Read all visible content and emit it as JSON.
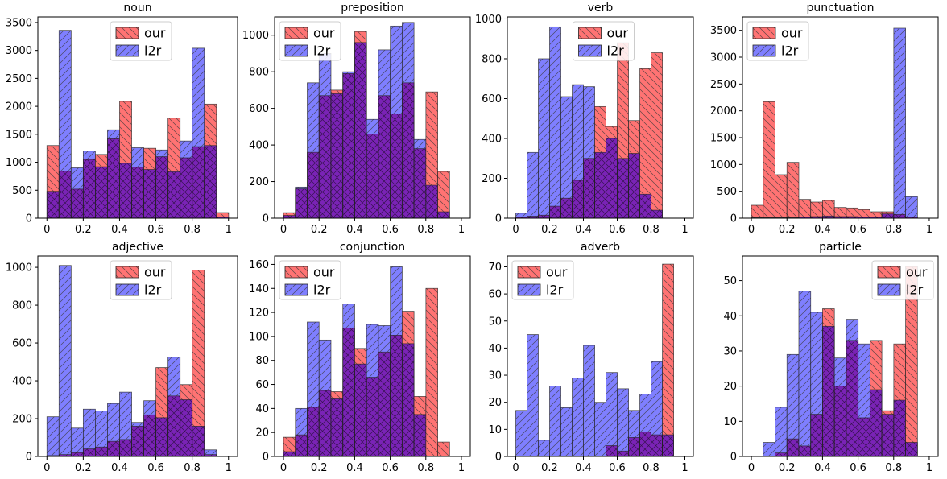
{
  "legend": {
    "our_label": "our",
    "l2r_label": "l2r"
  },
  "colors": {
    "our": "#ff0000",
    "l2r": "#0000ff",
    "overlap": "#7f00bf",
    "edge": "#222222"
  },
  "chart_data": [
    {
      "type": "bar",
      "title": "noun",
      "bin_edges_start": 0.0,
      "bin_width": 0.0667,
      "xlim": [
        -0.05,
        1.05
      ],
      "xticks": [
        0.0,
        0.2,
        0.4,
        0.6,
        0.8,
        1.0
      ],
      "ylim": [
        0,
        3600
      ],
      "yticks": [
        0,
        500,
        1000,
        1500,
        2000,
        2500,
        3000,
        3500
      ],
      "legend_position": "upper-center",
      "grid": false,
      "series": [
        {
          "name": "our",
          "values": [
            1300,
            840,
            520,
            1050,
            1140,
            1420,
            2090,
            910,
            1250,
            1100,
            1790,
            1080,
            1280,
            2040,
            100
          ]
        },
        {
          "name": "l2r",
          "values": [
            480,
            3360,
            900,
            1200,
            920,
            1580,
            980,
            1260,
            870,
            1220,
            830,
            1380,
            3040,
            1300,
            20
          ]
        }
      ]
    },
    {
      "type": "bar",
      "title": "preposition",
      "bin_edges_start": 0.0,
      "bin_width": 0.0667,
      "xlim": [
        -0.05,
        1.05
      ],
      "xticks": [
        0.0,
        0.2,
        0.4,
        0.6,
        0.8,
        1.0
      ],
      "ylim": [
        0,
        1100
      ],
      "yticks": [
        0,
        200,
        400,
        600,
        800,
        1000
      ],
      "legend_position": "upper-left",
      "grid": false,
      "series": [
        {
          "name": "our",
          "values": [
            30,
            160,
            360,
            670,
            700,
            790,
            1020,
            460,
            670,
            570,
            740,
            380,
            690,
            255
          ]
        },
        {
          "name": "l2r",
          "values": [
            15,
            170,
            740,
            900,
            680,
            800,
            960,
            540,
            920,
            1050,
            1070,
            430,
            180,
            35
          ]
        }
      ]
    },
    {
      "type": "bar",
      "title": "verb",
      "bin_edges_start": 0.0,
      "bin_width": 0.0667,
      "xlim": [
        -0.05,
        1.05
      ],
      "xticks": [
        0.0,
        0.2,
        0.4,
        0.6,
        0.8,
        1.0
      ],
      "ylim": [
        0,
        1010
      ],
      "yticks": [
        0,
        200,
        400,
        600,
        800,
        1000
      ],
      "legend_position": "upper-center",
      "grid": false,
      "series": [
        {
          "name": "our",
          "values": [
            5,
            10,
            15,
            60,
            100,
            190,
            300,
            560,
            460,
            880,
            490,
            750,
            830
          ]
        },
        {
          "name": "l2r",
          "values": [
            25,
            330,
            800,
            960,
            610,
            670,
            660,
            330,
            400,
            300,
            325,
            120,
            40
          ]
        }
      ]
    },
    {
      "type": "bar",
      "title": "punctuation",
      "bin_edges_start": 0.0,
      "bin_width": 0.0667,
      "xlim": [
        -0.05,
        1.05
      ],
      "xticks": [
        0.0,
        0.2,
        0.4,
        0.6,
        0.8,
        1.0
      ],
      "ylim": [
        0,
        3750
      ],
      "yticks": [
        0,
        500,
        1000,
        1500,
        2000,
        2500,
        3000,
        3500
      ],
      "legend_position": "upper-left",
      "grid": false,
      "series": [
        {
          "name": "our",
          "values": [
            240,
            2170,
            810,
            1040,
            350,
            300,
            330,
            200,
            190,
            160,
            120,
            120,
            70,
            20
          ]
        },
        {
          "name": "l2r",
          "values": [
            10,
            10,
            10,
            10,
            20,
            30,
            40,
            30,
            30,
            20,
            20,
            80,
            3540,
            400
          ]
        }
      ]
    },
    {
      "type": "bar",
      "title": "adjective",
      "bin_edges_start": 0.0,
      "bin_width": 0.0667,
      "xlim": [
        -0.05,
        1.05
      ],
      "xticks": [
        0.0,
        0.2,
        0.4,
        0.6,
        0.8,
        1.0
      ],
      "ylim": [
        0,
        1060
      ],
      "yticks": [
        0,
        200,
        400,
        600,
        800,
        1000
      ],
      "legend_position": "upper-center",
      "grid": false,
      "series": [
        {
          "name": "our",
          "values": [
            5,
            10,
            20,
            40,
            50,
            80,
            90,
            160,
            220,
            470,
            320,
            380,
            985,
            10
          ]
        },
        {
          "name": "l2r",
          "values": [
            210,
            1010,
            150,
            250,
            240,
            280,
            340,
            180,
            295,
            205,
            525,
            300,
            160,
            35
          ]
        }
      ]
    },
    {
      "type": "bar",
      "title": "conjunction",
      "bin_edges_start": 0.0,
      "bin_width": 0.0667,
      "xlim": [
        -0.05,
        1.05
      ],
      "xticks": [
        0.0,
        0.2,
        0.4,
        0.6,
        0.8,
        1.0
      ],
      "ylim": [
        0,
        167
      ],
      "yticks": [
        0,
        20,
        40,
        60,
        80,
        100,
        120,
        140,
        160
      ],
      "legend_position": "upper-left",
      "grid": false,
      "series": [
        {
          "name": "our",
          "values": [
            16,
            18,
            41,
            55,
            54,
            107,
            90,
            66,
            87,
            101,
            121,
            50,
            140,
            12
          ]
        },
        {
          "name": "l2r",
          "values": [
            4,
            40,
            112,
            97,
            48,
            127,
            77,
            110,
            109,
            158,
            94,
            35,
            0,
            0
          ]
        }
      ]
    },
    {
      "type": "bar",
      "title": "adverb",
      "bin_edges_start": 0.0,
      "bin_width": 0.0667,
      "xlim": [
        -0.05,
        1.05
      ],
      "xticks": [
        0.0,
        0.2,
        0.4,
        0.6,
        0.8,
        1.0
      ],
      "ylim": [
        0,
        74
      ],
      "yticks": [
        0,
        10,
        20,
        30,
        40,
        50,
        60,
        70
      ],
      "legend_position": "upper-left",
      "grid": false,
      "series": [
        {
          "name": "our",
          "values": [
            0,
            0,
            0,
            0,
            0,
            0,
            0,
            0,
            4,
            2,
            7,
            9,
            8,
            71
          ]
        },
        {
          "name": "l2r",
          "values": [
            17,
            45,
            6,
            26,
            18,
            29,
            41,
            20,
            31,
            25,
            17,
            23,
            35,
            8
          ]
        }
      ]
    },
    {
      "type": "bar",
      "title": "particle",
      "bin_edges_start": 0.0,
      "bin_width": 0.0667,
      "xlim": [
        -0.05,
        1.05
      ],
      "xticks": [
        0.0,
        0.2,
        0.4,
        0.6,
        0.8,
        1.0
      ],
      "ylim": [
        0,
        57
      ],
      "yticks": [
        0,
        10,
        20,
        30,
        40,
        50
      ],
      "legend_position": "upper-right",
      "grid": false,
      "series": [
        {
          "name": "our",
          "values": [
            0,
            0,
            1,
            5,
            3,
            12,
            42,
            20,
            33,
            11,
            33,
            13,
            32,
            54
          ]
        },
        {
          "name": "l2r",
          "values": [
            0,
            4,
            14,
            29,
            47,
            41,
            37,
            28,
            39,
            32,
            19,
            12,
            16,
            4
          ]
        }
      ]
    }
  ]
}
